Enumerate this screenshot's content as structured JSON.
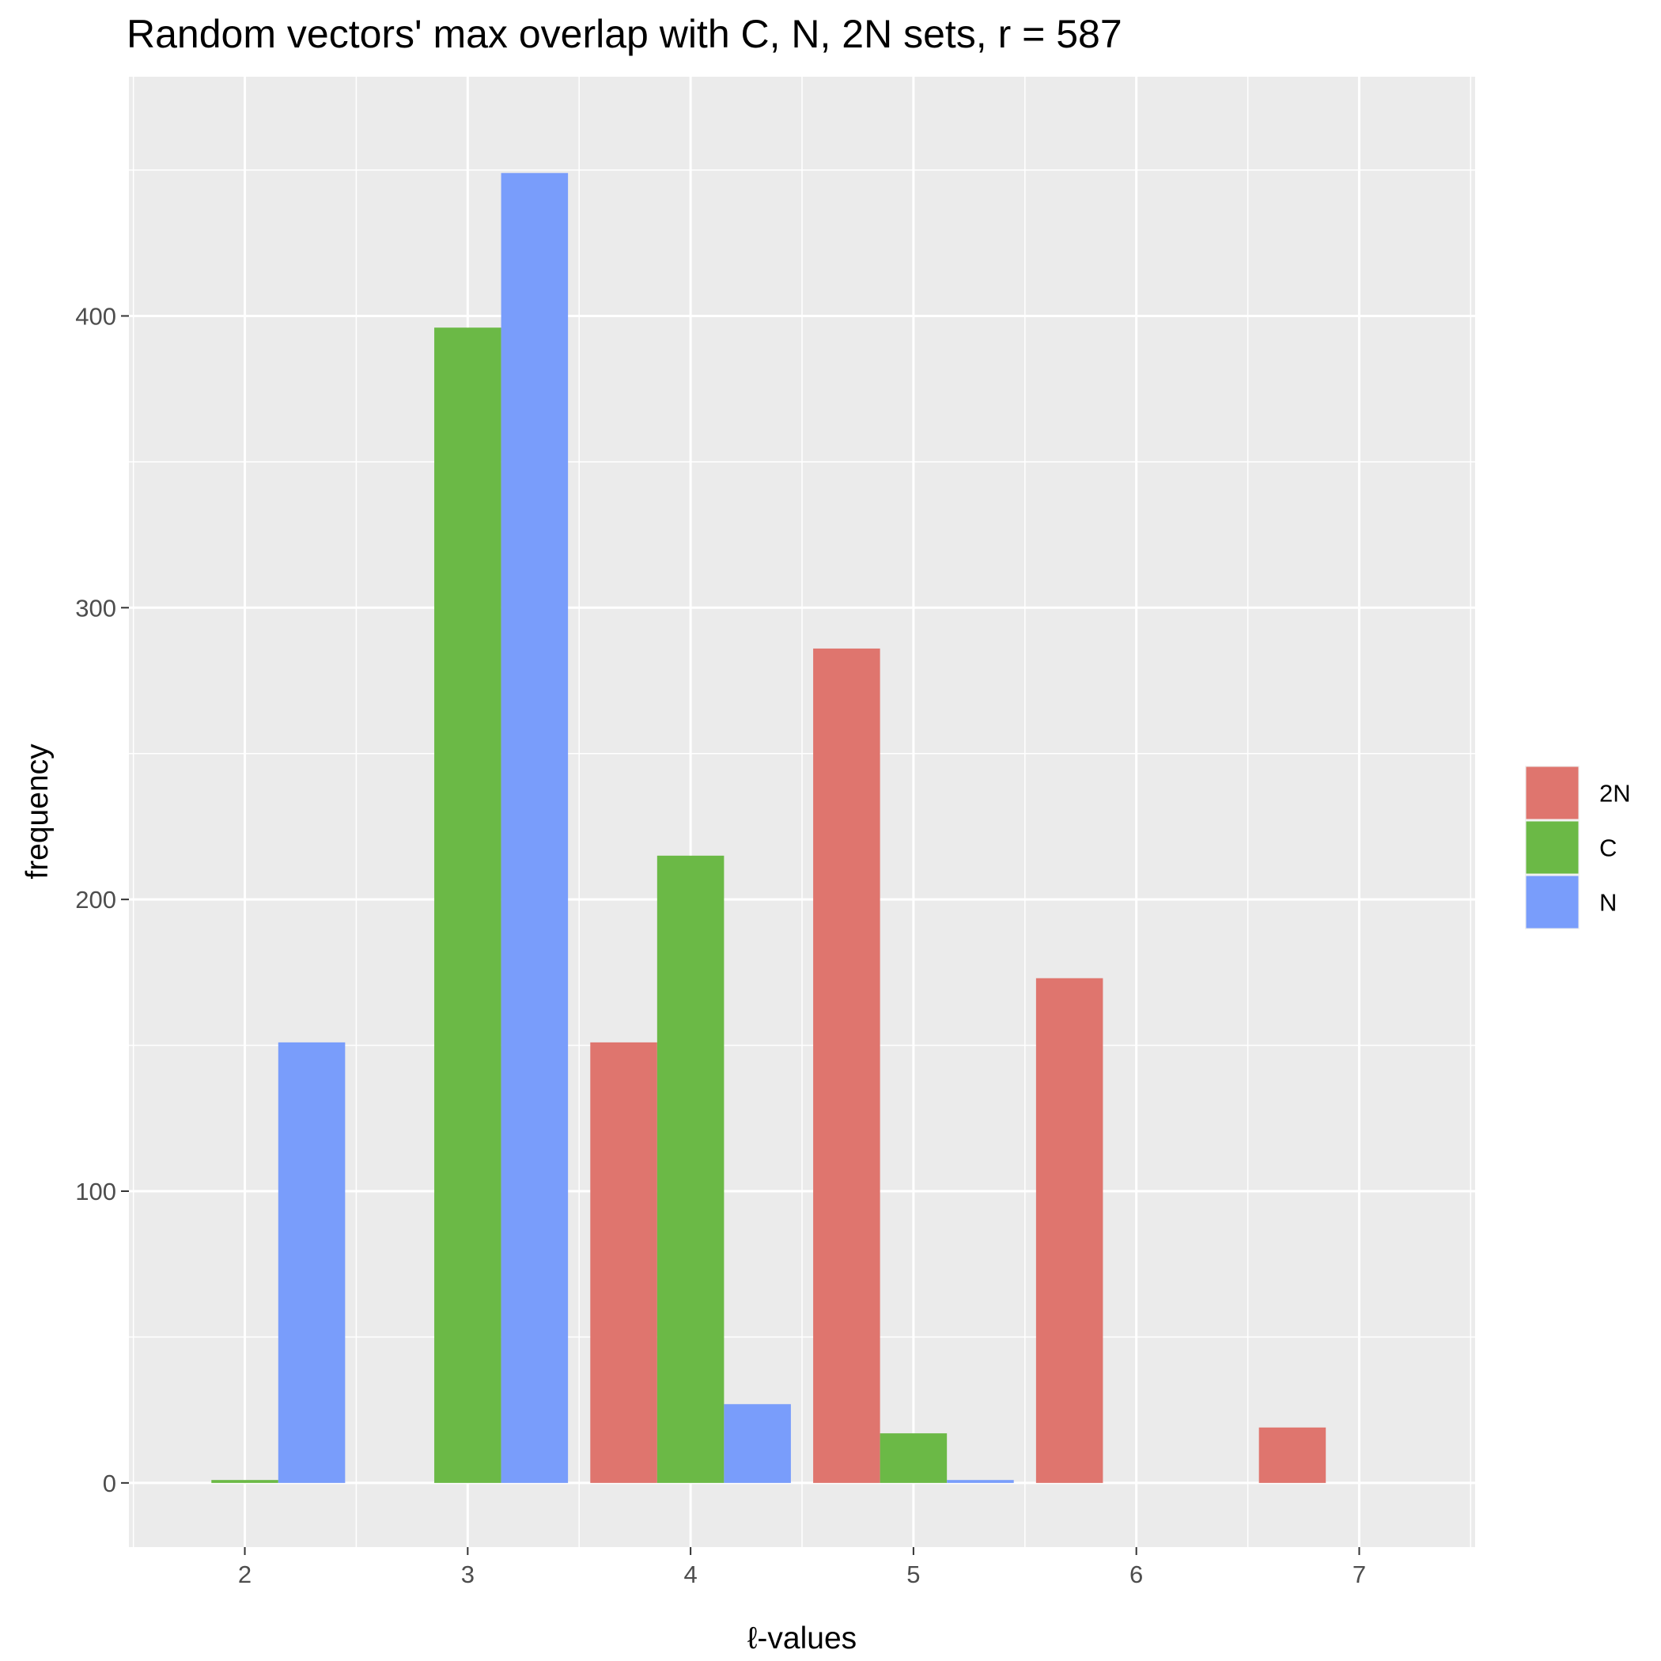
{
  "chart_data": {
    "type": "bar",
    "title": "Random vectors' max overlap with C, N, 2N sets, r = 587",
    "xlabel": "ℓ-values",
    "ylabel": "frequency",
    "x": [
      2,
      3,
      4,
      5,
      6,
      7
    ],
    "x_tick_labels": [
      "2",
      "3",
      "4",
      "5",
      "6",
      "7"
    ],
    "xlim": [
      1.48,
      7.52
    ],
    "ylim": [
      -22,
      482
    ],
    "y_ticks": [
      0,
      100,
      200,
      300,
      400
    ],
    "y_tick_labels": [
      "0",
      "100",
      "200",
      "300",
      "400"
    ],
    "grid": true,
    "legend_position": "right",
    "series": [
      {
        "name": "2N",
        "color": "#df756e",
        "values": [
          0,
          0,
          151,
          286,
          173,
          19
        ]
      },
      {
        "name": "C",
        "color": "#6bb946",
        "values": [
          1,
          396,
          215,
          17,
          0,
          0
        ]
      },
      {
        "name": "N",
        "color": "#799dfb",
        "values": [
          151,
          449,
          27,
          1,
          0,
          0
        ]
      }
    ]
  },
  "colors": {
    "panel_background": "#ebebeb",
    "grid_line": "#ffffff",
    "tick_text": "#4d4d4d",
    "tick_mark": "#333333"
  }
}
